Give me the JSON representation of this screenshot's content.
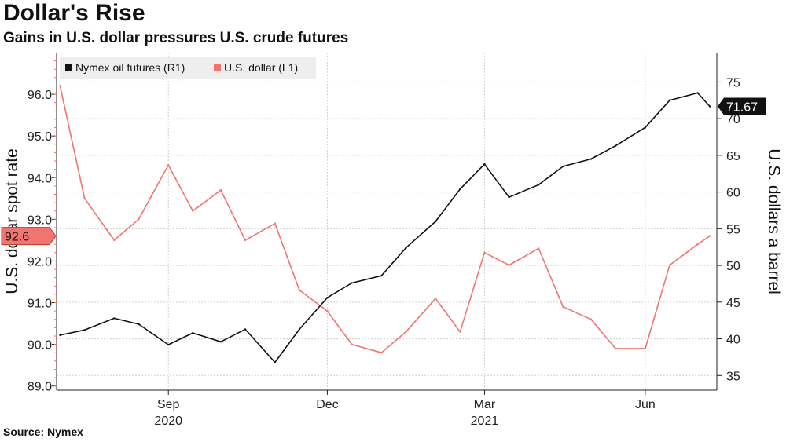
{
  "title": "Dollar's Rise",
  "subtitle": "Gains in U.S. dollar pressures U.S. crude futures",
  "source": "Source: Nymex",
  "colors": {
    "oil": "#111111",
    "dollar": "#f07470",
    "grid": "#cfcfcf",
    "axis": "#222222"
  },
  "chart_data": {
    "type": "line",
    "x": [
      "2020-07-01",
      "2020-07-15",
      "2020-08-01",
      "2020-08-15",
      "2020-09-01",
      "2020-09-15",
      "2020-10-01",
      "2020-10-15",
      "2020-11-01",
      "2020-11-15",
      "2020-12-01",
      "2020-12-15",
      "2021-01-01",
      "2021-01-15",
      "2021-02-01",
      "2021-02-15",
      "2021-03-01",
      "2021-03-15",
      "2021-04-01",
      "2021-04-15",
      "2021-05-01",
      "2021-05-15",
      "2021-06-01",
      "2021-06-15",
      "2021-07-01",
      "2021-07-08"
    ],
    "x_tick_labels": [
      "Sep",
      "Dec",
      "Mar",
      "Jun"
    ],
    "x_tick_dates": [
      "2020-09-01",
      "2020-12-01",
      "2021-03-01",
      "2021-06-01"
    ],
    "year_labels": [
      "2020",
      "2021"
    ],
    "year_label_dates": [
      "2020-09-01",
      "2021-03-01"
    ],
    "xlim": [
      "2020-06-29",
      "2021-07-12"
    ],
    "series": [
      {
        "name": "Nymex oil futures (R1)",
        "axis": "right",
        "values": [
          40.5,
          41.2,
          42.8,
          42.0,
          39.2,
          40.8,
          39.6,
          41.3,
          36.8,
          41.3,
          45.6,
          47.6,
          48.6,
          52.4,
          56.0,
          60.4,
          63.8,
          59.3,
          61.0,
          63.5,
          64.5,
          66.3,
          68.8,
          72.5,
          73.5,
          71.67
        ]
      },
      {
        "name": "U.S. dollar (L1)",
        "axis": "left",
        "values": [
          96.2,
          93.5,
          92.5,
          93.0,
          94.3,
          93.2,
          93.7,
          92.5,
          92.9,
          91.3,
          90.8,
          90.0,
          89.8,
          90.3,
          91.1,
          90.3,
          92.2,
          91.9,
          92.3,
          90.9,
          90.6,
          89.9,
          89.9,
          91.9,
          92.4,
          92.6
        ]
      }
    ],
    "left_axis": {
      "label": "U.S. dollar spot rate",
      "ylim": [
        88.9,
        97.0
      ],
      "ticks": [
        "89.0",
        "90.0",
        "91.0",
        "92.0",
        "93.0",
        "94.0",
        "95.0",
        "96.0"
      ],
      "last_value_tag": "92.6",
      "last_value": 92.6
    },
    "right_axis": {
      "label": "U.S. dollars a barrel",
      "ylim": [
        33.0,
        79.0
      ],
      "ticks": [
        "35",
        "40",
        "45",
        "50",
        "55",
        "60",
        "65",
        "70",
        "75"
      ],
      "last_value_tag": "71.67",
      "last_value": 71.67
    },
    "legend": "top-left",
    "grid": true
  }
}
